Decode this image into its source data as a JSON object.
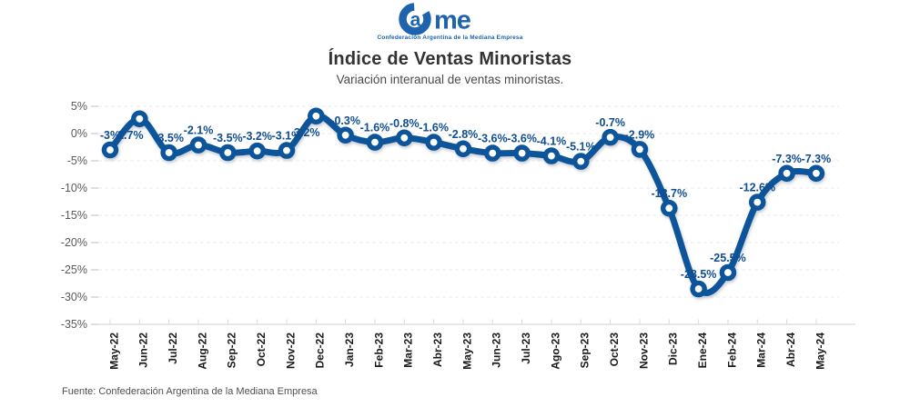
{
  "logo": {
    "brand": "Came",
    "tagline": "Confederación Argentina de la Mediana Empresa"
  },
  "header": {
    "title": "Índice de Ventas Minoristas",
    "subtitle": "Variación interanual de ventas minoristas."
  },
  "footer": {
    "source": "Fuente: Confederación Argentina de la Mediana Empresa"
  },
  "colors": {
    "line": "#11549b",
    "marker_hole": "#ffffff",
    "data_label": "#0f4e91",
    "grid": "#ebebeb",
    "grid_tick": "#c9c9c9",
    "axis": "#d9d9d9",
    "y_tick_label": "#5a5a5a",
    "x_tick_label": "#1a1a1a",
    "logo_blue": "#1d63ae"
  },
  "chart_data": {
    "type": "line",
    "title": "Índice de Ventas Minoristas",
    "subtitle": "Variación interanual de ventas minoristas.",
    "xlabel": "",
    "ylabel": "",
    "ylim": [
      -35,
      5
    ],
    "grid": "horizontal",
    "legend": "none",
    "line_style": "smooth",
    "marker": "ring",
    "categories": [
      "May-22",
      "Jun-22",
      "Jul-22",
      "Aug-22",
      "Sep-22",
      "Oct-22",
      "Nov-22",
      "Dec-22",
      "Jan-23",
      "Feb-23",
      "Mar-23",
      "Abr-23",
      "May-23",
      "Jun-23",
      "Jul-23",
      "Ago-23",
      "Sep-23",
      "Oct-23",
      "Nov-23",
      "Dic-23",
      "Ene-24",
      "Feb-24",
      "Mar-24",
      "Abr-24",
      "May-24"
    ],
    "values": [
      -3,
      2.7,
      -3.5,
      -2.1,
      -3.5,
      -3.2,
      -3.1,
      3.2,
      -0.3,
      -1.6,
      -0.8,
      -1.6,
      -2.8,
      -3.6,
      -3.6,
      -4.1,
      -5.1,
      -0.7,
      -2.9,
      -13.7,
      -28.5,
      -25.5,
      -12.6,
      -7.3,
      -7.3
    ],
    "point_labels": [
      "-3%",
      "2.7%",
      "-3.5%",
      "-2.1%",
      "-3.5%",
      "-3.2%",
      "-3.1%",
      "3.2%",
      "-0.3%",
      "-1.6%",
      "-0.8%",
      "-1.6%",
      "-2.8%",
      "-3.6%",
      "-3.6%",
      "-4.1%",
      "-5.1%",
      "-0.7%",
      "-2.9%",
      "-13.7%",
      "-28.5%",
      "-25.5%",
      "-12.6%",
      "-7.3%",
      "-7.3%"
    ],
    "y_ticks": [
      "5%",
      "0%",
      "-5%",
      "-10%",
      "-15%",
      "-20%",
      "-25%",
      "-30%",
      "-35%"
    ],
    "y_tick_values": [
      5,
      0,
      -5,
      -10,
      -15,
      -20,
      -25,
      -30,
      -35
    ]
  }
}
